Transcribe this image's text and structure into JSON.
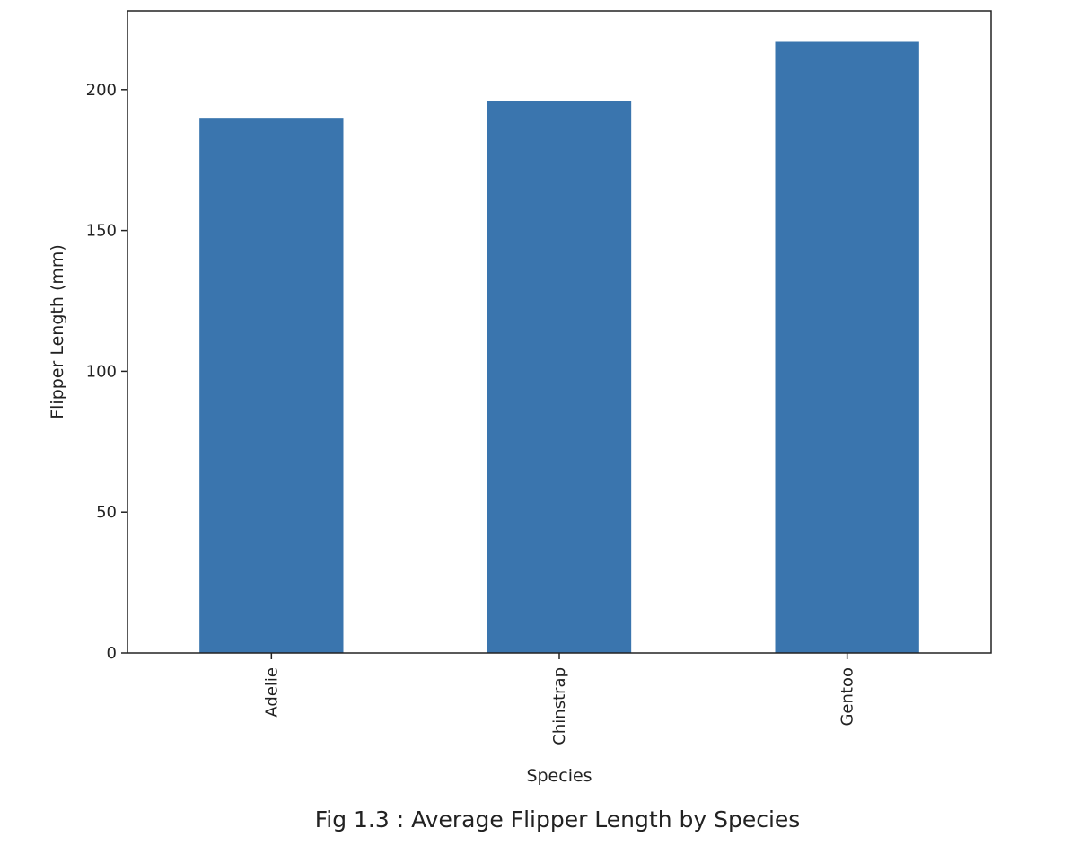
{
  "caption": "Fig 1.3 : Average Flipper Length by Species",
  "chart_data": {
    "type": "bar",
    "categories": [
      "Adelie",
      "Chinstrap",
      "Gentoo"
    ],
    "values": [
      190,
      196,
      217
    ],
    "xlabel": "Species",
    "ylabel": "Flipper Length (mm)",
    "ylim": [
      0,
      228
    ],
    "yticks": [
      0,
      50,
      100,
      150,
      200
    ],
    "xtick_rotation": "vertical",
    "grid": false,
    "legend": "none",
    "bar_color": "#3a75ae"
  }
}
